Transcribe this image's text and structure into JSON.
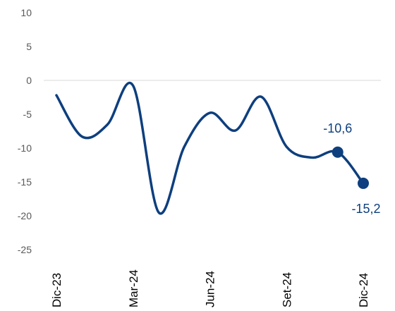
{
  "chart_data": {
    "type": "line",
    "title": "",
    "xlabel": "",
    "ylabel": "",
    "ylim": [
      -25,
      10
    ],
    "y_ticks": [
      10,
      5,
      0,
      -5,
      -10,
      -15,
      -20,
      -25
    ],
    "y_tick_labels": [
      "10",
      "5",
      "0",
      "-5",
      "-10",
      "-15",
      "-20",
      "-25"
    ],
    "x_tick_labels": [
      "Dic-23",
      "Mar-24",
      "Jun-24",
      "Set-24",
      "Dic-24"
    ],
    "x_tick_index": [
      0,
      3,
      6,
      9,
      12
    ],
    "grid": "zero line only",
    "color": "#0e3f7e",
    "series": [
      {
        "x": [
          "Dic-23",
          "Ene-24",
          "Feb-24",
          "Mar-24",
          "Abr-24",
          "May-24",
          "Jun-24",
          "Jul-24",
          "Ago-24",
          "Set-24",
          "Oct-24",
          "Nov-24",
          "Dic-24"
        ],
        "values": [
          -2.2,
          -8.3,
          -6.5,
          -0.8,
          -19.5,
          -9.8,
          -4.8,
          -7.4,
          -2.4,
          -9.8,
          -11.4,
          -10.6,
          -15.2
        ]
      }
    ],
    "annotations": [
      {
        "label": "-10,6",
        "index": 11
      },
      {
        "label": "-15,2",
        "index": 12
      }
    ]
  }
}
